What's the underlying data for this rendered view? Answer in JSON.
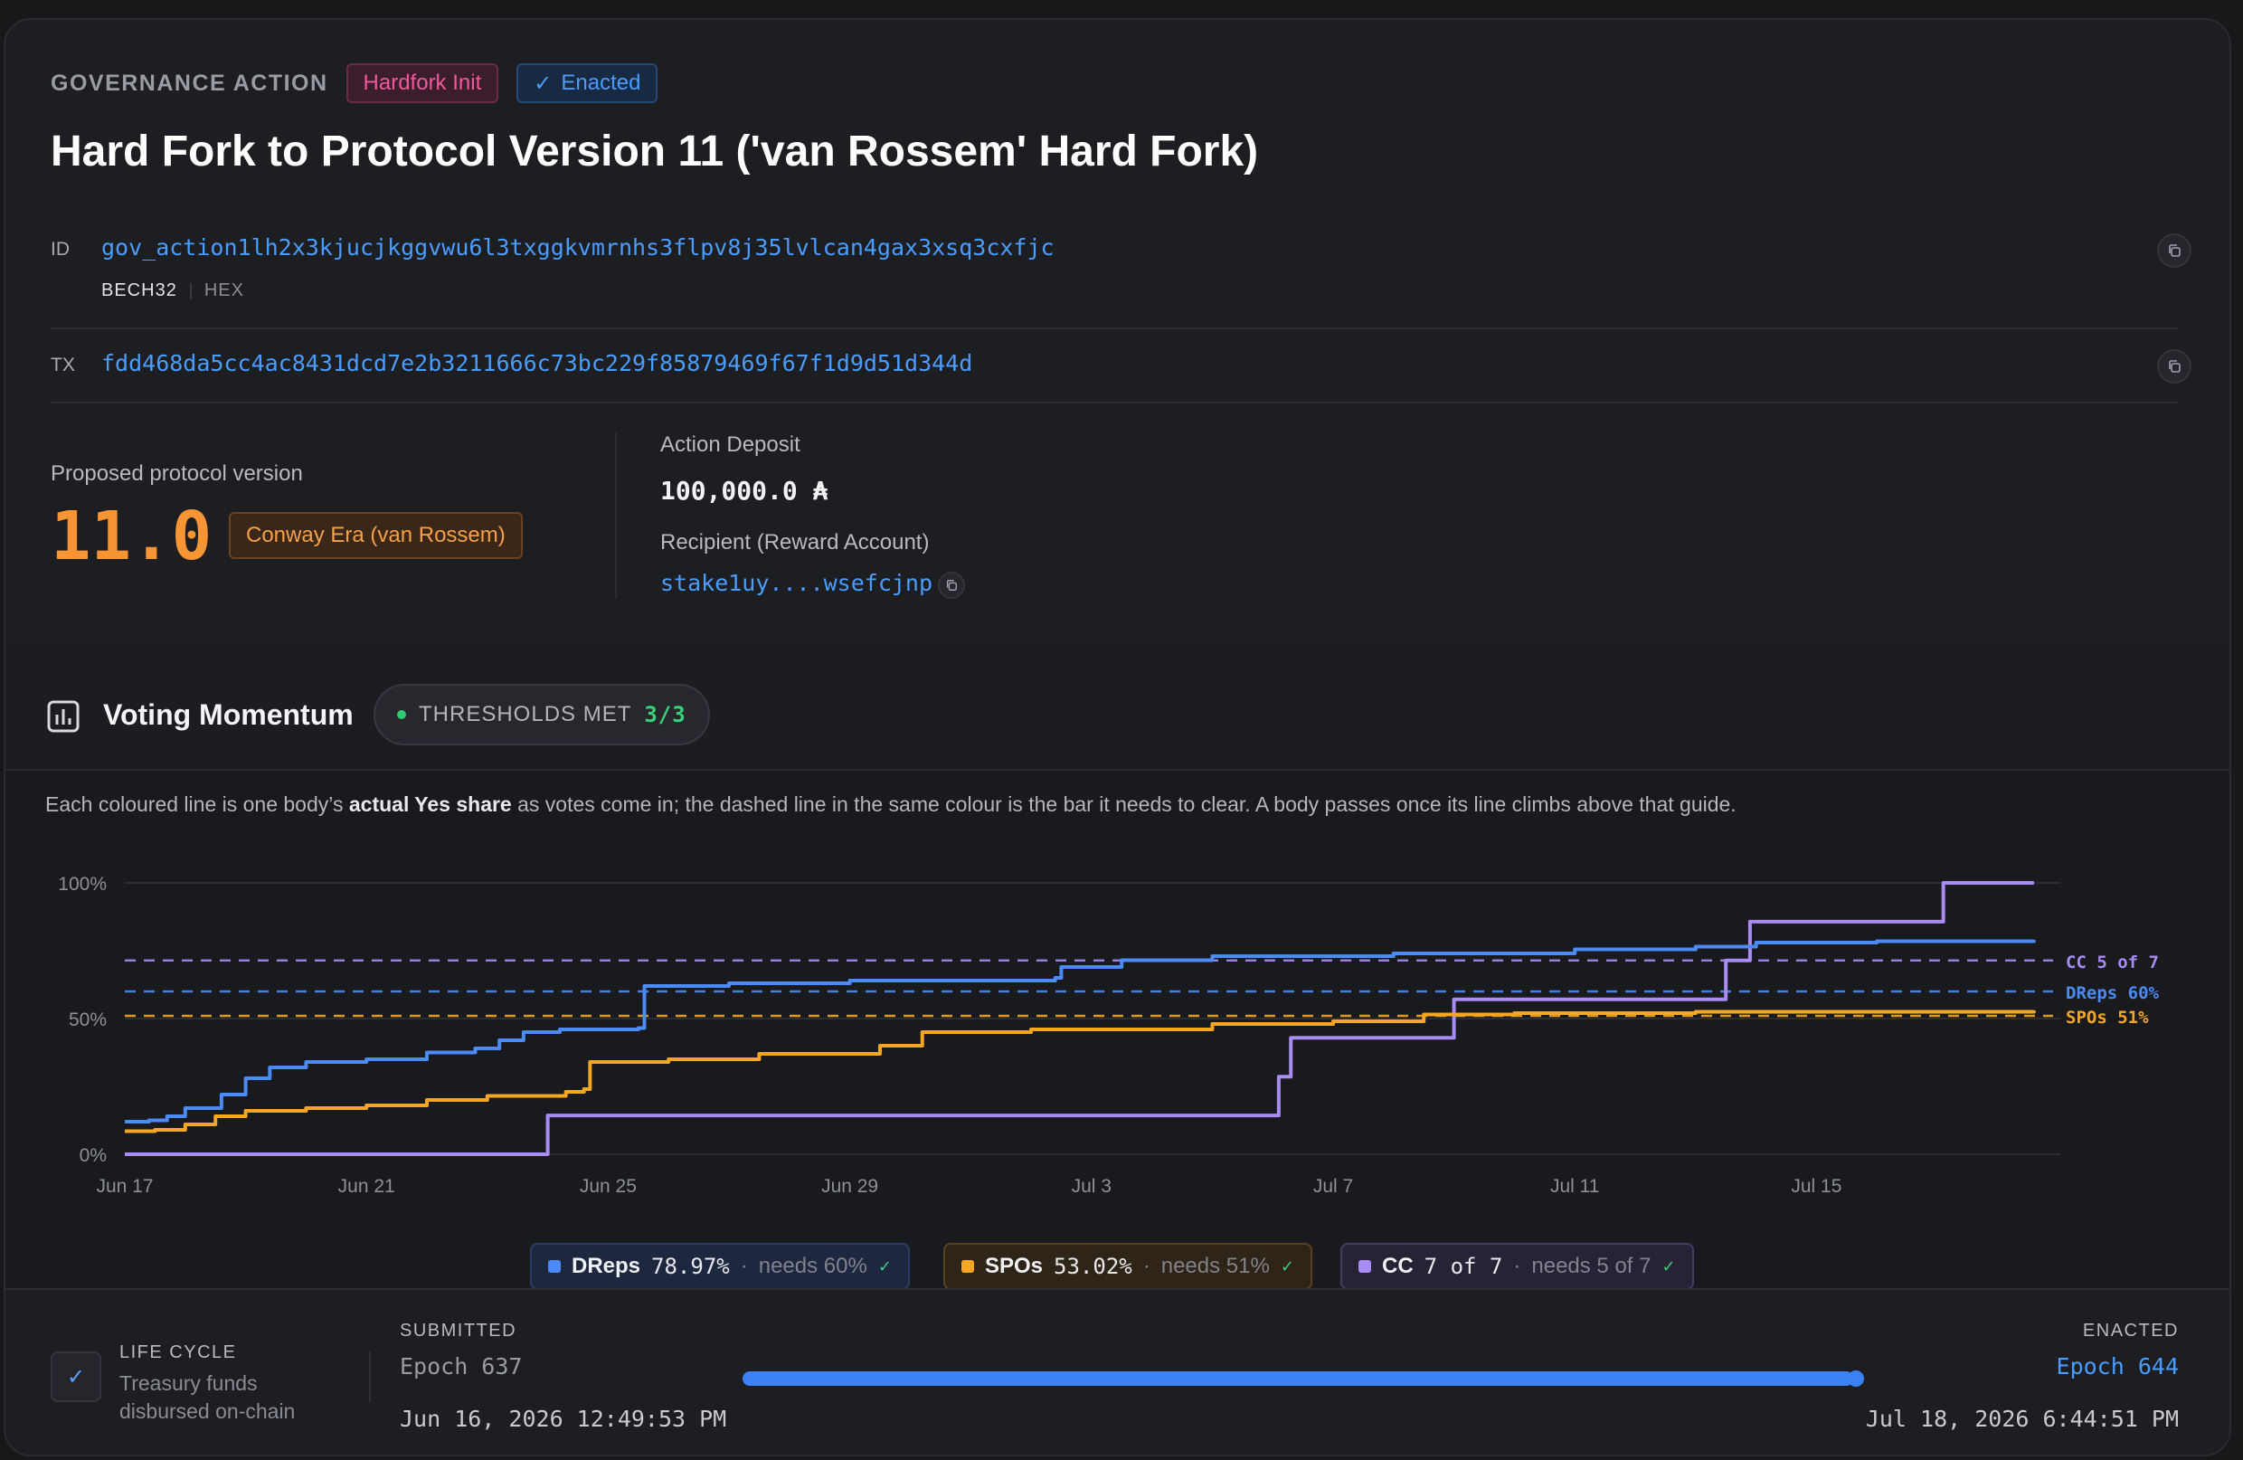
{
  "header": {
    "eyebrow": "GOVERNANCE ACTION",
    "badge_type": "Hardfork Init",
    "badge_status": "Enacted",
    "title": "Hard Fork to Protocol Version 11 ('van Rossem' Hard Fork)"
  },
  "ids": {
    "id_label": "ID",
    "id_value": "gov_action1lh2x3kjucjkggvwu6l3txggkvmrnhs3flpv8j35lvlcan4gax3xsq3cxfjc",
    "format_bech32": "BECH32",
    "format_hex": "HEX",
    "tx_label": "TX",
    "tx_value": "fdd468da5cc4ac8431dcd7e2b3211666c73bc229f85879469f67f1d9d51d344d"
  },
  "details": {
    "proposed_label": "Proposed protocol version",
    "version": "11.0",
    "era": "Conway Era (van Rossem)",
    "deposit_label": "Action Deposit",
    "deposit_value": "100,000.0 ₳",
    "recipient_label": "Recipient (Reward Account)",
    "recipient_value": "stake1uy....wsefcjnp"
  },
  "momentum": {
    "title": "Voting Momentum",
    "thresholds_label": "THRESHOLDS MET",
    "thresholds_value": "3/3",
    "desc_before": "Each coloured line is one body’s ",
    "desc_bold": "actual Yes share",
    "desc_after": " as votes come in; the dashed line in the same colour is the bar it needs to clear. A body passes once its line climbs above that guide."
  },
  "colors": {
    "dreps": "#4a8bf5",
    "spos": "#f5a623",
    "cc": "#a98bf5",
    "accent_blue": "#3b82f6"
  },
  "chart_data": {
    "type": "line",
    "y_ticks": [
      "100%",
      "50%",
      "0%"
    ],
    "ylim": [
      0,
      100
    ],
    "x_ticks": [
      "Jun 17",
      "Jun 21",
      "Jun 25",
      "Jun 29",
      "Jul 3",
      "Jul 7",
      "Jul 11",
      "Jul 15"
    ],
    "x_start": "Jun 17",
    "x_end": "Jul 18",
    "series": [
      {
        "name": "CC",
        "key": "cc",
        "points": [
          [
            "Jun 17",
            0
          ],
          [
            "Jun 24",
            0
          ],
          [
            "Jun 24",
            14.3
          ],
          [
            "Jul 6",
            14.3
          ],
          [
            "Jul 6.1",
            28.6
          ],
          [
            "Jul 6.3",
            42.9
          ],
          [
            "Jul 9",
            42.9
          ],
          [
            "Jul 9",
            57.1
          ],
          [
            "Jul 13.5",
            57.1
          ],
          [
            "Jul 13.5",
            71.4
          ],
          [
            "Jul 13.9",
            85.7
          ],
          [
            "Jul 17.1",
            85.7
          ],
          [
            "Jul 17.1",
            100
          ],
          [
            "Jul 18.6",
            100
          ]
        ],
        "threshold": 71.4,
        "threshold_label": "CC 5 of 7"
      },
      {
        "name": "DReps",
        "key": "dreps",
        "points": [
          [
            "Jun 17",
            12
          ],
          [
            "Jun 17.4",
            12.5
          ],
          [
            "Jun 17.7",
            14
          ],
          [
            "Jun 18",
            17
          ],
          [
            "Jun 18.6",
            22
          ],
          [
            "Jun 19",
            28
          ],
          [
            "Jun 19.4",
            32
          ],
          [
            "Jun 20",
            34
          ],
          [
            "Jun 21",
            35
          ],
          [
            "Jun 22",
            37.5
          ],
          [
            "Jun 22.8",
            39
          ],
          [
            "Jun 23.2",
            42
          ],
          [
            "Jun 23.6",
            45
          ],
          [
            "Jun 24.2",
            46
          ],
          [
            "Jun 25.5",
            46.5
          ],
          [
            "Jun 25.6",
            62
          ],
          [
            "Jun 27",
            63
          ],
          [
            "Jun 29",
            64
          ],
          [
            "Jul 2.4",
            65
          ],
          [
            "Jul 2.5",
            69
          ],
          [
            "Jul 3.5",
            71.5
          ],
          [
            "Jul 5",
            73
          ],
          [
            "Jul 8",
            74
          ],
          [
            "Jul 11",
            75.5
          ],
          [
            "Jul 13",
            76.5
          ],
          [
            "Jul 14",
            78
          ],
          [
            "Jul 16",
            78.5
          ],
          [
            "Jul 18.6",
            78.97
          ]
        ],
        "threshold": 60,
        "threshold_label": "DReps 60%"
      },
      {
        "name": "SPOs",
        "key": "spos",
        "points": [
          [
            "Jun 17",
            8.5
          ],
          [
            "Jun 17.5",
            9
          ],
          [
            "Jun 18",
            11
          ],
          [
            "Jun 18.5",
            14
          ],
          [
            "Jun 19",
            16
          ],
          [
            "Jun 20",
            17
          ],
          [
            "Jun 21",
            18
          ],
          [
            "Jun 22",
            20
          ],
          [
            "Jun 23",
            21.5
          ],
          [
            "Jun 24.3",
            23
          ],
          [
            "Jun 24.6",
            24
          ],
          [
            "Jun 24.7",
            34
          ],
          [
            "Jun 26",
            35
          ],
          [
            "Jun 27.5",
            37
          ],
          [
            "Jun 29.5",
            40
          ],
          [
            "Jun 30.2",
            45
          ],
          [
            "Jul 2",
            46
          ],
          [
            "Jul 5",
            48
          ],
          [
            "Jul 7",
            49
          ],
          [
            "Jul 8.5",
            51.5
          ],
          [
            "Jul 10",
            52
          ],
          [
            "Jul 13",
            52.5
          ],
          [
            "Jul 18.6",
            53.02
          ]
        ],
        "threshold": 51,
        "threshold_label": "SPOs 51%"
      }
    ]
  },
  "legend": [
    {
      "key": "dreps",
      "name": "DReps",
      "value": "78.97%",
      "needs": "needs 60%"
    },
    {
      "key": "spos",
      "name": "SPOs",
      "value": "53.02%",
      "needs": "needs 51%"
    },
    {
      "key": "cc",
      "name": "CC",
      "value": "7 of 7",
      "needs": "needs 5 of 7"
    }
  ],
  "footer": {
    "lifecycle_label": "LIFE CYCLE",
    "lifecycle_line1": "Treasury funds",
    "lifecycle_line2": "disbursed on-chain",
    "submitted_label": "SUBMITTED",
    "submitted_epoch": "Epoch 637",
    "submitted_date": "Jun 16, 2026 12:49:53 PM",
    "enacted_label": "ENACTED",
    "enacted_epoch": "Epoch 644",
    "enacted_date": "Jul 18, 2026 6:44:51 PM",
    "progress": 1.0
  }
}
